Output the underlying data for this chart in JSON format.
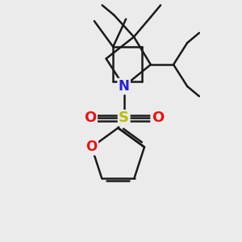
{
  "bg_color": "#ebebeb",
  "bond_color": "#1a1a1a",
  "N_color": "#2222dd",
  "O_color": "#ee1111",
  "S_color": "#bbbb00",
  "lw": 1.8,
  "dbo": 0.022,
  "xlim": [
    -0.75,
    0.85
  ],
  "ylim": [
    -1.55,
    0.85
  ]
}
